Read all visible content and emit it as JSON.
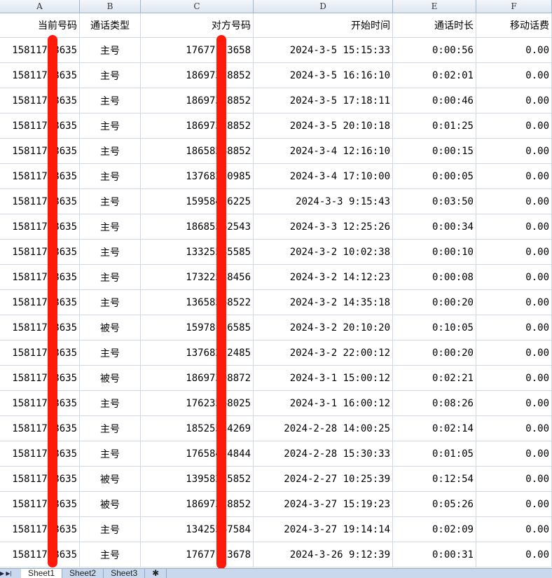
{
  "column_letters": [
    "A",
    "B",
    "C",
    "D",
    "E",
    "F"
  ],
  "headers": [
    "当前号码",
    "通话类型",
    "对方号码",
    "开始时间",
    "通话时长",
    "移动话费"
  ],
  "rows": [
    [
      "15811758635",
      "主号",
      "17677123658",
      "2024-3-5 15:15:33",
      "0:00:56",
      "0.00"
    ],
    [
      "15811758635",
      "主号",
      "18697378852",
      "2024-3-5 16:16:10",
      "0:02:01",
      "0.00"
    ],
    [
      "15811758635",
      "主号",
      "18697378852",
      "2024-3-5 17:18:11",
      "0:00:46",
      "0.00"
    ],
    [
      "15811758635",
      "主号",
      "18697378852",
      "2024-3-5 20:10:18",
      "0:01:25",
      "0.00"
    ],
    [
      "15811758635",
      "主号",
      "18658548852",
      "2024-3-4 12:16:10",
      "0:00:15",
      "0.00"
    ],
    [
      "15811758635",
      "主号",
      "13768250985",
      "2024-3-4 17:10:00",
      "0:00:05",
      "0.00"
    ],
    [
      "15811758635",
      "主号",
      "15958426225",
      "2024-3-3 9:15:43",
      "0:03:50",
      "0.00"
    ],
    [
      "15811758635",
      "主号",
      "18685562543",
      "2024-3-3 12:25:26",
      "0:00:34",
      "0.00"
    ],
    [
      "15811758635",
      "主号",
      "13325545585",
      "2024-3-2 10:02:38",
      "0:00:10",
      "0.00"
    ],
    [
      "15811758635",
      "主号",
      "17322538456",
      "2024-3-2 14:12:23",
      "0:00:08",
      "0.00"
    ],
    [
      "15811758635",
      "主号",
      "13658568522",
      "2024-3-2 14:35:18",
      "0:00:20",
      "0.00"
    ],
    [
      "15811758635",
      "被号",
      "15978156585",
      "2024-3-2 20:10:20",
      "0:10:05",
      "0.00"
    ],
    [
      "15811758635",
      "主号",
      "13768252485",
      "2024-3-2 22:00:12",
      "0:00:20",
      "0.00"
    ],
    [
      "15811758635",
      "被号",
      "18697398872",
      "2024-3-1 15:00:12",
      "0:02:21",
      "0.00"
    ],
    [
      "15811758635",
      "主号",
      "17623568025",
      "2024-3-1 16:00:12",
      "0:08:26",
      "0.00"
    ],
    [
      "15811758635",
      "主号",
      "18525534269",
      "2024-2-28 14:00:25",
      "0:02:14",
      "0.00"
    ],
    [
      "15811758635",
      "主号",
      "17658474844",
      "2024-2-28 15:30:33",
      "0:01:05",
      "0.00"
    ],
    [
      "15811758635",
      "被号",
      "13958265852",
      "2024-2-27 10:25:39",
      "0:12:54",
      "0.00"
    ],
    [
      "15811758635",
      "被号",
      "18697378852",
      "2024-3-27 15:19:23",
      "0:05:26",
      "0.00"
    ],
    [
      "15811758635",
      "主号",
      "13425567584",
      "2024-3-27 19:14:14",
      "0:02:09",
      "0.00"
    ],
    [
      "15811758635",
      "主号",
      "17677123678",
      "2024-3-26 9:12:39",
      "0:00:31",
      "0.00"
    ]
  ],
  "sheet_tabs": [
    "Sheet1",
    "Sheet2",
    "Sheet3"
  ],
  "active_tab": "Sheet1",
  "redaction_color": "#ff1a0a"
}
